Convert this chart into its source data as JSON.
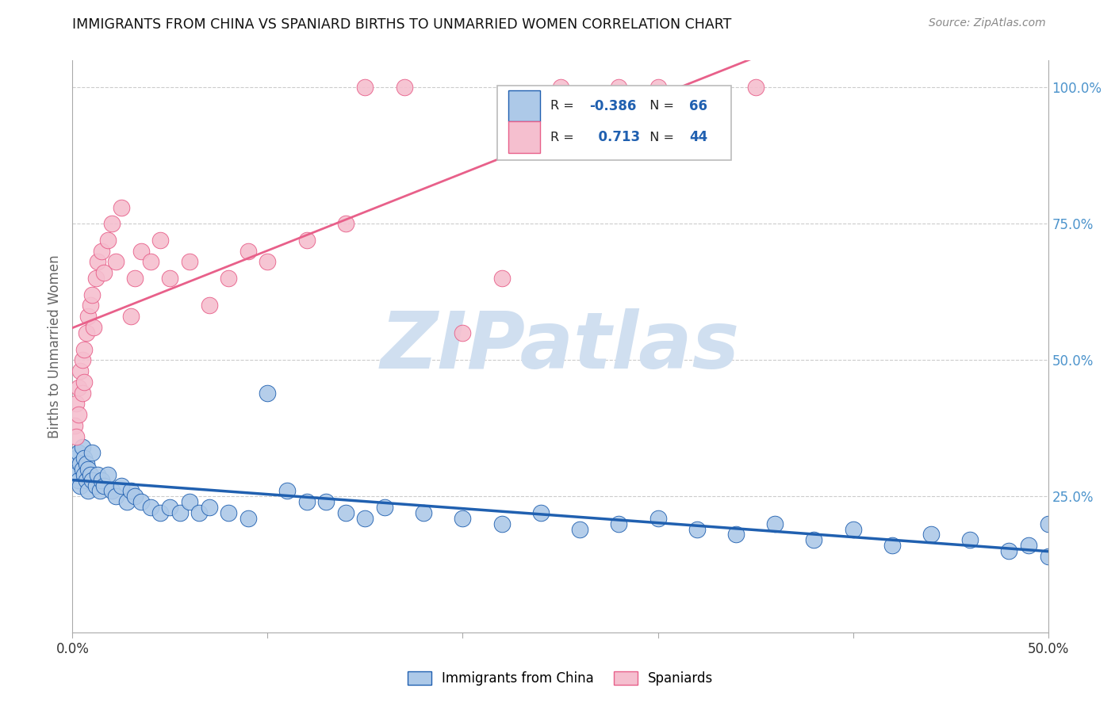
{
  "title": "IMMIGRANTS FROM CHINA VS SPANIARD BIRTHS TO UNMARRIED WOMEN CORRELATION CHART",
  "source": "Source: ZipAtlas.com",
  "ylabel": "Births to Unmarried Women",
  "blue_r": "-0.386",
  "blue_n": 66,
  "pink_r": "0.713",
  "pink_n": 44,
  "blue_color": "#adc9e8",
  "pink_color": "#f5bfcf",
  "blue_line_color": "#2060b0",
  "pink_line_color": "#e8608a",
  "watermark": "ZIPatlas",
  "watermark_color": "#d0dff0",
  "blue_scatter_x": [
    0.001,
    0.002,
    0.002,
    0.003,
    0.003,
    0.004,
    0.004,
    0.005,
    0.005,
    0.006,
    0.006,
    0.007,
    0.007,
    0.008,
    0.008,
    0.009,
    0.01,
    0.01,
    0.012,
    0.013,
    0.014,
    0.015,
    0.016,
    0.018,
    0.02,
    0.022,
    0.025,
    0.028,
    0.03,
    0.032,
    0.035,
    0.04,
    0.045,
    0.05,
    0.055,
    0.06,
    0.065,
    0.07,
    0.08,
    0.09,
    0.1,
    0.11,
    0.12,
    0.13,
    0.14,
    0.15,
    0.16,
    0.18,
    0.2,
    0.22,
    0.24,
    0.26,
    0.28,
    0.3,
    0.32,
    0.34,
    0.36,
    0.38,
    0.4,
    0.42,
    0.44,
    0.46,
    0.48,
    0.49,
    0.5,
    0.5
  ],
  "blue_scatter_y": [
    0.3,
    0.29,
    0.32,
    0.28,
    0.33,
    0.31,
    0.27,
    0.3,
    0.34,
    0.29,
    0.32,
    0.31,
    0.28,
    0.3,
    0.26,
    0.29,
    0.28,
    0.33,
    0.27,
    0.29,
    0.26,
    0.28,
    0.27,
    0.29,
    0.26,
    0.25,
    0.27,
    0.24,
    0.26,
    0.25,
    0.24,
    0.23,
    0.22,
    0.23,
    0.22,
    0.24,
    0.22,
    0.23,
    0.22,
    0.21,
    0.44,
    0.26,
    0.24,
    0.24,
    0.22,
    0.21,
    0.23,
    0.22,
    0.21,
    0.2,
    0.22,
    0.19,
    0.2,
    0.21,
    0.19,
    0.18,
    0.2,
    0.17,
    0.19,
    0.16,
    0.18,
    0.17,
    0.15,
    0.16,
    0.14,
    0.2
  ],
  "pink_scatter_x": [
    0.001,
    0.002,
    0.002,
    0.003,
    0.003,
    0.004,
    0.005,
    0.005,
    0.006,
    0.006,
    0.007,
    0.008,
    0.009,
    0.01,
    0.011,
    0.012,
    0.013,
    0.015,
    0.016,
    0.018,
    0.02,
    0.022,
    0.025,
    0.03,
    0.032,
    0.035,
    0.04,
    0.045,
    0.05,
    0.06,
    0.07,
    0.08,
    0.09,
    0.1,
    0.12,
    0.14,
    0.15,
    0.17,
    0.2,
    0.22,
    0.25,
    0.28,
    0.3,
    0.35
  ],
  "pink_scatter_y": [
    0.38,
    0.42,
    0.36,
    0.45,
    0.4,
    0.48,
    0.5,
    0.44,
    0.52,
    0.46,
    0.55,
    0.58,
    0.6,
    0.62,
    0.56,
    0.65,
    0.68,
    0.7,
    0.66,
    0.72,
    0.75,
    0.68,
    0.78,
    0.58,
    0.65,
    0.7,
    0.68,
    0.72,
    0.65,
    0.68,
    0.6,
    0.65,
    0.7,
    0.68,
    0.72,
    0.75,
    1.0,
    1.0,
    0.55,
    0.65,
    1.0,
    1.0,
    1.0,
    1.0
  ],
  "xlim": [
    0,
    0.5
  ],
  "ylim": [
    0,
    1.05
  ],
  "right_ytick_vals": [
    0.25,
    0.5,
    0.75,
    1.0
  ],
  "right_ytick_labels": [
    "25.0%",
    "50.0%",
    "75.0%",
    "100.0%"
  ],
  "right_yaxis_color": "#4d94cc"
}
